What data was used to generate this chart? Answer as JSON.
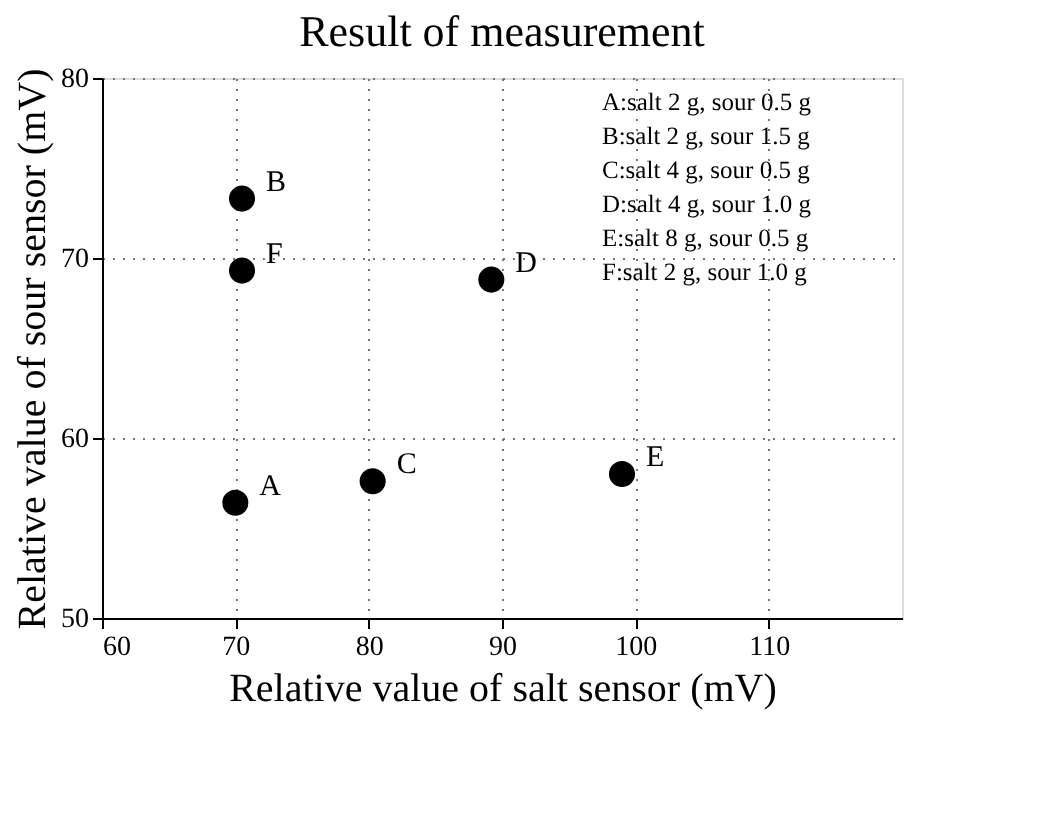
{
  "chart_data": {
    "type": "scatter",
    "title": "Result of measurement",
    "xlabel": "Relative value of salt sensor (mV)",
    "ylabel": "Relative value of sour sensor (mV)",
    "x": [
      70,
      70.5,
      80.3,
      89.2,
      99,
      70.5
    ],
    "values": [
      56.4,
      73.3,
      57.6,
      68.8,
      58,
      69.3
    ],
    "value_labels": [
      "A",
      "B",
      "C",
      "D",
      "E",
      "F"
    ],
    "color": "#000000",
    "marker": "circle",
    "xlim": [
      60,
      120
    ],
    "xticks": [
      60,
      70,
      80,
      90,
      100,
      110
    ],
    "ylim": [
      50,
      80
    ],
    "yticks": [
      50,
      60,
      70,
      80
    ],
    "grid": true,
    "line_style": "dotted",
    "annotations": [
      "A:salt 2 g, sour 0.5 g",
      "B:salt 2 g, sour 1.5 g",
      "C:salt 4 g, sour 0.5 g",
      "D:salt 4 g, sour 1.0 g",
      "E:salt 8 g, sour 0.5 g",
      "F:salt 2 g, sour 1.0 g"
    ]
  }
}
